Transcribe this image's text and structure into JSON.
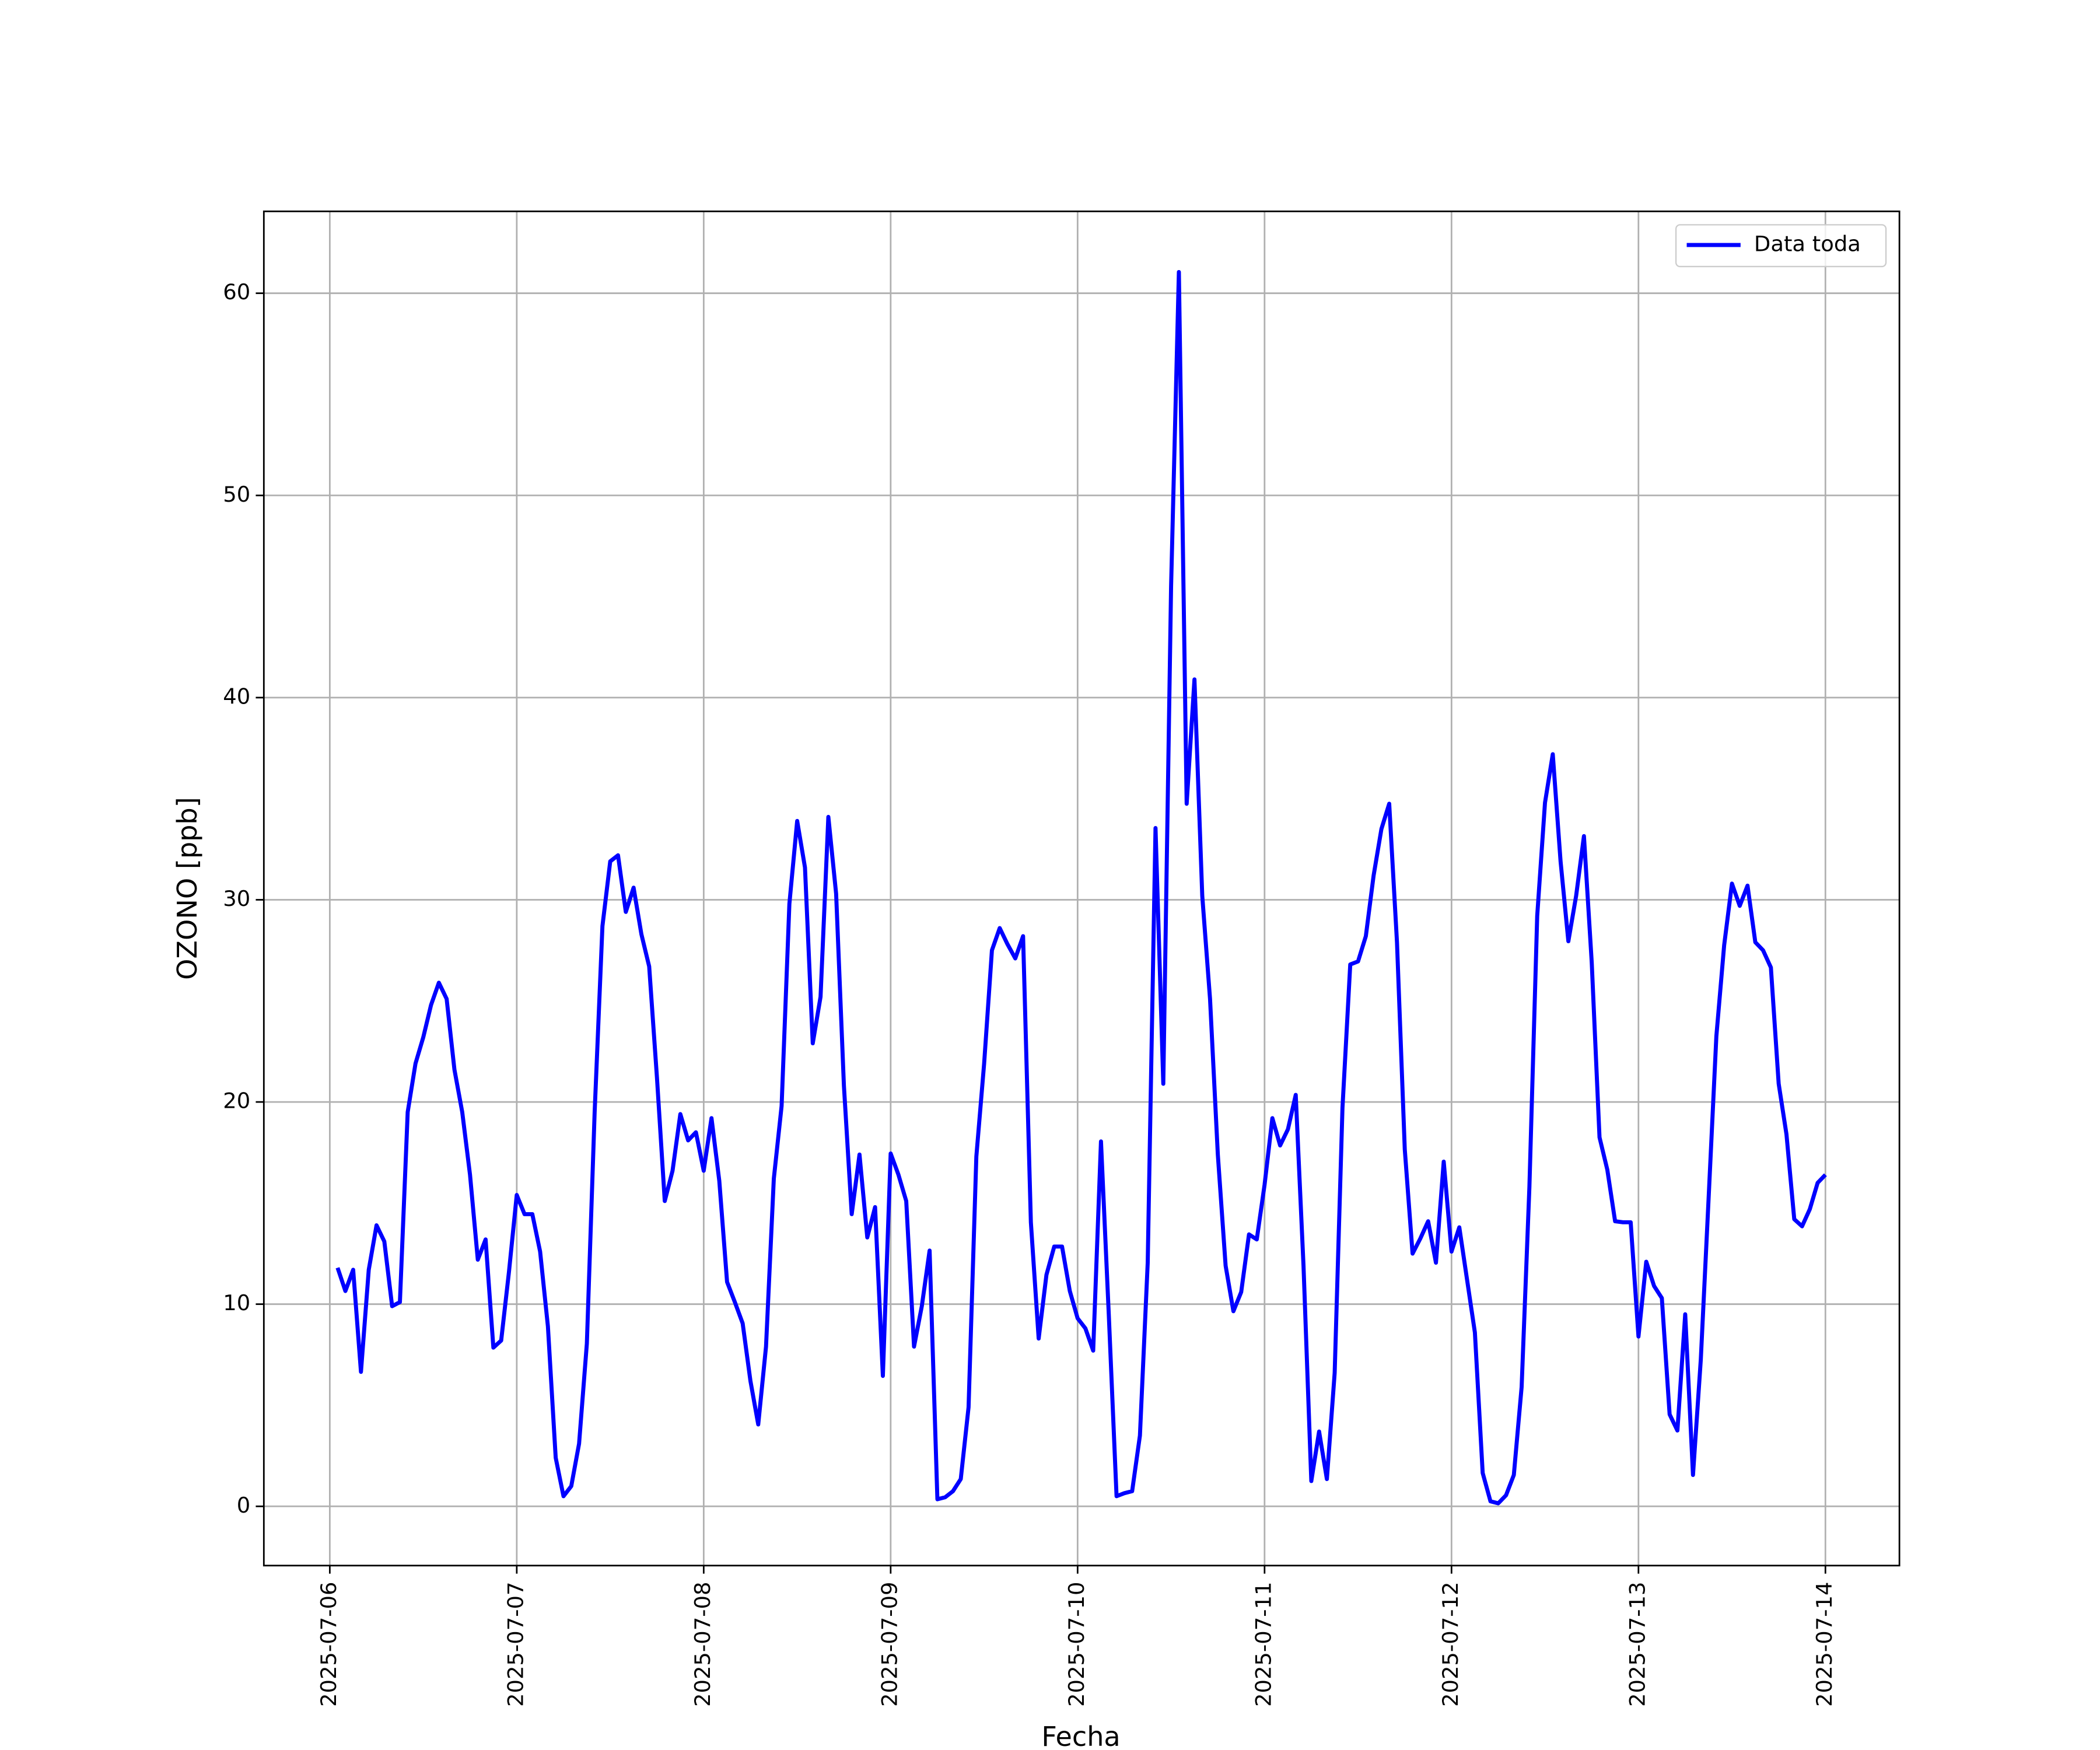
{
  "chart_data": {
    "type": "line",
    "xlabel": "Fecha",
    "ylabel": "OZONO [ppb]",
    "xlim": [
      "2025-07-05 15:32",
      "2025-07-14 09:30"
    ],
    "ylim": [
      -2.93,
      64.05
    ],
    "xticks": [
      "2025-07-06",
      "2025-07-07",
      "2025-07-08",
      "2025-07-09",
      "2025-07-10",
      "2025-07-11",
      "2025-07-12",
      "2025-07-13",
      "2025-07-14"
    ],
    "yticks": [
      0,
      10,
      20,
      30,
      40,
      50,
      60
    ],
    "grid": true,
    "legend": "upper right",
    "x": [
      "2025-07-06 01:00",
      "2025-07-06 02:00",
      "2025-07-06 03:00",
      "2025-07-06 04:00",
      "2025-07-06 05:00",
      "2025-07-06 06:00",
      "2025-07-06 07:00",
      "2025-07-06 08:00",
      "2025-07-06 09:00",
      "2025-07-06 10:00",
      "2025-07-06 11:00",
      "2025-07-06 12:00",
      "2025-07-06 13:00",
      "2025-07-06 14:00",
      "2025-07-06 15:00",
      "2025-07-06 16:00",
      "2025-07-06 17:00",
      "2025-07-06 18:00",
      "2025-07-06 19:00",
      "2025-07-06 20:00",
      "2025-07-06 21:00",
      "2025-07-06 22:00",
      "2025-07-06 23:00",
      "2025-07-07 00:00",
      "2025-07-07 01:00",
      "2025-07-07 02:00",
      "2025-07-07 03:00",
      "2025-07-07 04:00",
      "2025-07-07 05:00",
      "2025-07-07 06:00",
      "2025-07-07 07:00",
      "2025-07-07 08:00",
      "2025-07-07 09:00",
      "2025-07-07 10:00",
      "2025-07-07 11:00",
      "2025-07-07 12:00",
      "2025-07-07 13:00",
      "2025-07-07 14:00",
      "2025-07-07 15:00",
      "2025-07-07 16:00",
      "2025-07-07 17:00",
      "2025-07-07 18:00",
      "2025-07-07 19:00",
      "2025-07-07 20:00",
      "2025-07-07 21:00",
      "2025-07-07 22:00",
      "2025-07-07 23:00",
      "2025-07-08 00:00",
      "2025-07-08 01:00",
      "2025-07-08 02:00",
      "2025-07-08 03:00",
      "2025-07-08 04:00",
      "2025-07-08 05:00",
      "2025-07-08 06:00",
      "2025-07-08 07:00",
      "2025-07-08 08:00",
      "2025-07-08 09:00",
      "2025-07-08 10:00",
      "2025-07-08 11:00",
      "2025-07-08 12:00",
      "2025-07-08 13:00",
      "2025-07-08 14:00",
      "2025-07-08 15:00",
      "2025-07-08 16:00",
      "2025-07-08 17:00",
      "2025-07-08 18:00",
      "2025-07-08 19:00",
      "2025-07-08 20:00",
      "2025-07-08 21:00",
      "2025-07-08 22:00",
      "2025-07-08 23:00",
      "2025-07-09 00:00",
      "2025-07-09 01:00",
      "2025-07-09 02:00",
      "2025-07-09 03:00",
      "2025-07-09 04:00",
      "2025-07-09 05:00",
      "2025-07-09 06:00",
      "2025-07-09 07:00",
      "2025-07-09 08:00",
      "2025-07-09 09:00",
      "2025-07-09 10:00",
      "2025-07-09 11:00",
      "2025-07-09 12:00",
      "2025-07-09 13:00",
      "2025-07-09 14:00",
      "2025-07-09 15:00",
      "2025-07-09 16:00",
      "2025-07-09 17:00",
      "2025-07-09 18:00",
      "2025-07-09 19:00",
      "2025-07-09 20:00",
      "2025-07-09 21:00",
      "2025-07-09 22:00",
      "2025-07-09 23:00",
      "2025-07-10 00:00",
      "2025-07-10 01:00",
      "2025-07-10 02:00",
      "2025-07-10 03:00",
      "2025-07-10 04:00",
      "2025-07-10 05:00",
      "2025-07-10 06:00",
      "2025-07-10 07:00",
      "2025-07-10 08:00",
      "2025-07-10 09:00",
      "2025-07-10 10:00",
      "2025-07-10 11:00",
      "2025-07-10 12:00",
      "2025-07-10 13:00",
      "2025-07-10 14:00",
      "2025-07-10 15:00",
      "2025-07-10 16:00",
      "2025-07-10 17:00",
      "2025-07-10 18:00",
      "2025-07-10 19:00",
      "2025-07-10 20:00",
      "2025-07-10 21:00",
      "2025-07-10 22:00",
      "2025-07-10 23:00",
      "2025-07-11 00:00",
      "2025-07-11 01:00",
      "2025-07-11 02:00",
      "2025-07-11 03:00",
      "2025-07-11 04:00",
      "2025-07-11 05:00",
      "2025-07-11 06:00",
      "2025-07-11 07:00",
      "2025-07-11 08:00",
      "2025-07-11 09:00",
      "2025-07-11 10:00",
      "2025-07-11 11:00",
      "2025-07-11 12:00",
      "2025-07-11 13:00",
      "2025-07-11 14:00",
      "2025-07-11 15:00",
      "2025-07-11 16:00",
      "2025-07-11 17:00",
      "2025-07-11 18:00",
      "2025-07-11 19:00",
      "2025-07-11 20:00",
      "2025-07-11 21:00",
      "2025-07-11 22:00",
      "2025-07-11 23:00",
      "2025-07-12 00:00",
      "2025-07-12 01:00",
      "2025-07-12 02:00",
      "2025-07-12 03:00",
      "2025-07-12 04:00",
      "2025-07-12 05:00",
      "2025-07-12 06:00",
      "2025-07-12 07:00",
      "2025-07-12 08:00",
      "2025-07-12 09:00",
      "2025-07-12 10:00",
      "2025-07-12 11:00",
      "2025-07-12 12:00",
      "2025-07-12 13:00",
      "2025-07-12 14:00",
      "2025-07-12 15:00",
      "2025-07-12 16:00",
      "2025-07-12 17:00",
      "2025-07-12 18:00",
      "2025-07-12 19:00",
      "2025-07-12 20:00",
      "2025-07-12 21:00",
      "2025-07-12 22:00",
      "2025-07-12 23:00",
      "2025-07-13 00:00",
      "2025-07-13 01:00",
      "2025-07-13 02:00",
      "2025-07-13 03:00",
      "2025-07-13 04:00",
      "2025-07-13 05:00",
      "2025-07-13 06:00",
      "2025-07-13 07:00",
      "2025-07-13 08:00",
      "2025-07-13 09:00",
      "2025-07-13 10:00",
      "2025-07-13 11:00",
      "2025-07-13 12:00",
      "2025-07-13 13:00",
      "2025-07-13 14:00",
      "2025-07-13 15:00",
      "2025-07-13 16:00",
      "2025-07-13 17:00",
      "2025-07-13 18:00",
      "2025-07-13 19:00",
      "2025-07-13 20:00",
      "2025-07-13 21:00",
      "2025-07-13 22:00",
      "2025-07-13 23:00",
      "2025-07-14 00:00"
    ],
    "series": [
      {
        "name": "Data toda",
        "color": "#0000ff",
        "values": [
          11.8,
          10.65,
          11.7,
          6.65,
          11.7,
          13.9,
          13.1,
          9.9,
          10.1,
          19.5,
          21.9,
          23.2,
          24.8,
          25.9,
          25.1,
          21.6,
          19.5,
          16.4,
          12.2,
          13.2,
          7.85,
          8.2,
          11.6,
          15.4,
          14.45,
          14.45,
          12.6,
          8.9,
          2.4,
          0.5,
          1.0,
          3.1,
          8.05,
          19.5,
          28.7,
          31.9,
          32.2,
          29.4,
          30.6,
          28.3,
          26.7,
          21.2,
          15.1,
          16.6,
          19.4,
          18.1,
          18.5,
          16.6,
          19.2,
          16.1,
          11.1,
          10.1,
          9.05,
          6.2,
          4.05,
          7.9,
          16.2,
          19.8,
          29.8,
          33.9,
          31.6,
          22.9,
          25.2,
          34.1,
          30.3,
          20.8,
          14.45,
          17.4,
          13.3,
          14.8,
          6.45,
          17.45,
          16.4,
          15.1,
          7.9,
          9.9,
          12.65,
          0.35,
          0.45,
          0.75,
          1.35,
          4.9,
          17.3,
          21.9,
          27.5,
          28.6,
          27.8,
          27.1,
          28.2,
          14.05,
          8.3,
          11.45,
          12.85,
          12.85,
          10.65,
          9.3,
          8.8,
          7.7,
          18.05,
          9.5,
          0.5,
          0.65,
          0.75,
          3.5,
          12.05,
          33.55,
          20.9,
          45.5,
          61.05,
          34.75,
          40.9,
          30.2,
          25.1,
          17.4,
          11.9,
          9.65,
          10.6,
          13.45,
          13.2,
          15.9,
          19.2,
          17.85,
          18.65,
          20.35,
          11.9,
          1.25,
          3.7,
          1.35,
          6.6,
          19.7,
          26.8,
          26.95,
          28.2,
          31.2,
          33.5,
          34.75,
          27.9,
          17.65,
          12.5,
          13.25,
          14.1,
          12.05,
          17.05,
          12.6,
          13.8,
          11.2,
          8.6,
          1.65,
          0.25,
          0.15,
          0.55,
          1.55,
          5.9,
          15.8,
          29.2,
          34.8,
          37.2,
          31.9,
          27.95,
          30.2,
          33.15,
          26.9,
          18.25,
          16.65,
          14.1,
          14.05,
          14.05,
          8.4,
          12.1,
          10.9,
          10.3,
          4.55,
          3.75,
          9.5,
          1.55,
          7.25,
          15.2,
          23.25,
          27.75,
          30.8,
          29.7,
          30.7,
          27.9,
          27.5,
          26.65,
          20.9,
          18.4,
          14.2,
          13.85,
          14.7,
          16.0,
          16.4
        ]
      }
    ]
  }
}
